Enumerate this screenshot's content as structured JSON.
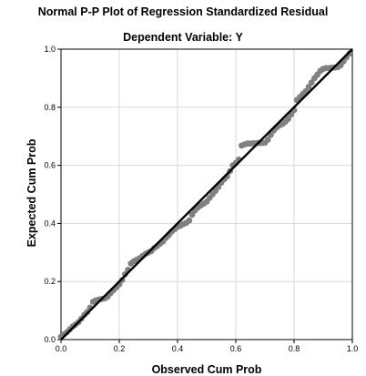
{
  "chart_data": {
    "type": "scatter",
    "title": "Normal P-P Plot of Regression Standardized Residual",
    "subtitle": "Dependent Variable: Y",
    "xlabel": "Observed Cum Prob",
    "ylabel": "Expected Cum Prob",
    "xlim": [
      0.0,
      1.0
    ],
    "ylim": [
      0.0,
      1.0
    ],
    "x_ticks": [
      "0.0",
      "0.2",
      "0.4",
      "0.6",
      "0.8",
      "1.0"
    ],
    "y_ticks": [
      "0.0",
      "0.2",
      "0.4",
      "0.6",
      "0.8",
      "1.0"
    ],
    "grid": true,
    "reference_line": {
      "from": [
        0,
        0
      ],
      "to": [
        1,
        1
      ],
      "color": "#000000"
    },
    "point_color": "#808080",
    "series": [
      {
        "points": [
          [
            0.0,
            0.01
          ],
          [
            0.01,
            0.018
          ],
          [
            0.02,
            0.025
          ],
          [
            0.03,
            0.035
          ],
          [
            0.04,
            0.045
          ],
          [
            0.05,
            0.052
          ],
          [
            0.06,
            0.06
          ],
          [
            0.07,
            0.072
          ],
          [
            0.08,
            0.085
          ],
          [
            0.09,
            0.095
          ],
          [
            0.1,
            0.11
          ],
          [
            0.11,
            0.13
          ],
          [
            0.12,
            0.135
          ],
          [
            0.13,
            0.138
          ],
          [
            0.14,
            0.14
          ],
          [
            0.15,
            0.142
          ],
          [
            0.16,
            0.148
          ],
          [
            0.17,
            0.16
          ],
          [
            0.18,
            0.17
          ],
          [
            0.19,
            0.18
          ],
          [
            0.2,
            0.19
          ],
          [
            0.21,
            0.205
          ],
          [
            0.22,
            0.225
          ],
          [
            0.23,
            0.24
          ],
          [
            0.24,
            0.262
          ],
          [
            0.25,
            0.27
          ],
          [
            0.26,
            0.275
          ],
          [
            0.27,
            0.28
          ],
          [
            0.28,
            0.288
          ],
          [
            0.29,
            0.295
          ],
          [
            0.3,
            0.3
          ],
          [
            0.31,
            0.305
          ],
          [
            0.32,
            0.315
          ],
          [
            0.33,
            0.322
          ],
          [
            0.34,
            0.33
          ],
          [
            0.35,
            0.338
          ],
          [
            0.36,
            0.35
          ],
          [
            0.37,
            0.36
          ],
          [
            0.38,
            0.372
          ],
          [
            0.39,
            0.38
          ],
          [
            0.4,
            0.388
          ],
          [
            0.41,
            0.392
          ],
          [
            0.42,
            0.398
          ],
          [
            0.43,
            0.402
          ],
          [
            0.44,
            0.41
          ],
          [
            0.45,
            0.43
          ],
          [
            0.46,
            0.445
          ],
          [
            0.47,
            0.455
          ],
          [
            0.48,
            0.462
          ],
          [
            0.49,
            0.468
          ],
          [
            0.5,
            0.475
          ],
          [
            0.51,
            0.488
          ],
          [
            0.52,
            0.5
          ],
          [
            0.53,
            0.512
          ],
          [
            0.54,
            0.525
          ],
          [
            0.55,
            0.54
          ],
          [
            0.56,
            0.552
          ],
          [
            0.57,
            0.562
          ],
          [
            0.58,
            0.58
          ],
          [
            0.59,
            0.6
          ],
          [
            0.6,
            0.608
          ],
          [
            0.61,
            0.62
          ],
          [
            0.62,
            0.668
          ],
          [
            0.63,
            0.672
          ],
          [
            0.64,
            0.675
          ],
          [
            0.65,
            0.675
          ],
          [
            0.66,
            0.676
          ],
          [
            0.67,
            0.676
          ],
          [
            0.68,
            0.677
          ],
          [
            0.69,
            0.677
          ],
          [
            0.7,
            0.678
          ],
          [
            0.71,
            0.688
          ],
          [
            0.72,
            0.705
          ],
          [
            0.73,
            0.72
          ],
          [
            0.74,
            0.73
          ],
          [
            0.75,
            0.738
          ],
          [
            0.76,
            0.742
          ],
          [
            0.77,
            0.75
          ],
          [
            0.78,
            0.76
          ],
          [
            0.79,
            0.775
          ],
          [
            0.8,
            0.79
          ],
          [
            0.81,
            0.825
          ],
          [
            0.82,
            0.835
          ],
          [
            0.83,
            0.845
          ],
          [
            0.84,
            0.855
          ],
          [
            0.85,
            0.87
          ],
          [
            0.86,
            0.885
          ],
          [
            0.87,
            0.9
          ],
          [
            0.88,
            0.912
          ],
          [
            0.89,
            0.925
          ],
          [
            0.9,
            0.932
          ],
          [
            0.91,
            0.935
          ],
          [
            0.92,
            0.935
          ],
          [
            0.93,
            0.936
          ],
          [
            0.94,
            0.937
          ],
          [
            0.95,
            0.938
          ],
          [
            0.96,
            0.945
          ],
          [
            0.97,
            0.958
          ],
          [
            0.98,
            0.972
          ],
          [
            0.99,
            0.985
          ]
        ]
      }
    ]
  }
}
